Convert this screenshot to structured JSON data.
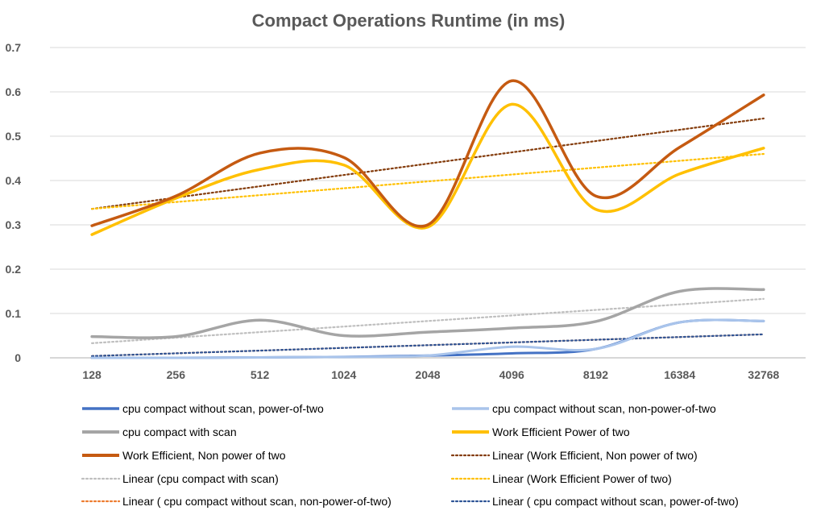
{
  "chart_data": {
    "type": "line",
    "title": "Compact Operations Runtime (in ms)",
    "xlabel": "",
    "ylabel": "",
    "categories": [
      "128",
      "256",
      "512",
      "1024",
      "2048",
      "4096",
      "8192",
      "16384",
      "32768"
    ],
    "ylim": [
      0,
      0.7
    ],
    "yticks": [
      "0",
      "0.1",
      "0.2",
      "0.3",
      "0.4",
      "0.5",
      "0.6",
      "0.7"
    ],
    "grid": true,
    "legend_position": "bottom",
    "series": [
      {
        "name": "cpu compact without scan, power-of-two",
        "color": "#4472c4",
        "style": "smooth",
        "values": [
          0.0,
          0.0,
          0.001,
          0.002,
          0.005,
          0.01,
          0.02,
          0.08,
          0.083
        ]
      },
      {
        "name": "cpu compact without scan, non-power-of-two",
        "color": "#a9c4eb",
        "style": "smooth",
        "values": [
          0.0,
          0.0,
          0.001,
          0.002,
          0.005,
          0.025,
          0.02,
          0.08,
          0.083
        ]
      },
      {
        "name": "cpu compact with scan",
        "color": "#a5a5a5",
        "style": "smooth",
        "values": [
          0.048,
          0.048,
          0.085,
          0.05,
          0.058,
          0.067,
          0.082,
          0.15,
          0.154
        ]
      },
      {
        "name": "Work Efficient Power of two",
        "color": "#ffc000",
        "style": "smooth",
        "values": [
          0.278,
          0.36,
          0.425,
          0.435,
          0.295,
          0.572,
          0.335,
          0.415,
          0.473
        ]
      },
      {
        "name": "Work Efficient, Non power of two",
        "color": "#c55a11",
        "style": "smooth",
        "values": [
          0.298,
          0.365,
          0.462,
          0.452,
          0.3,
          0.625,
          0.365,
          0.475,
          0.593
        ]
      },
      {
        "name": "Linear (Work Efficient, Non power of two)",
        "color": "#843c0c",
        "style": "trend",
        "values": [
          0.336,
          0.361,
          0.387,
          0.412,
          0.438,
          0.463,
          0.489,
          0.514,
          0.54
        ]
      },
      {
        "name": "Linear (cpu compact with scan)",
        "color": "#bfbfbf",
        "style": "trend",
        "values": [
          0.033,
          0.046,
          0.058,
          0.071,
          0.083,
          0.096,
          0.108,
          0.121,
          0.133
        ]
      },
      {
        "name": "Linear (Work Efficient Power of two)",
        "color": "#ffc000",
        "style": "trend",
        "values": [
          0.336,
          0.352,
          0.367,
          0.383,
          0.398,
          0.414,
          0.429,
          0.445,
          0.46
        ]
      },
      {
        "name": "Linear ( cpu compact without scan, non-power-of-two)",
        "color": "#ed7d31",
        "style": "trend",
        "values": [
          0.004,
          0.01,
          0.016,
          0.022,
          0.028,
          0.035,
          0.041,
          0.047,
          0.053
        ]
      },
      {
        "name": "Linear ( cpu compact without scan, power-of-two)",
        "color": "#2f5597",
        "style": "trend",
        "values": [
          0.004,
          0.01,
          0.016,
          0.022,
          0.028,
          0.035,
          0.041,
          0.047,
          0.053
        ]
      }
    ]
  }
}
